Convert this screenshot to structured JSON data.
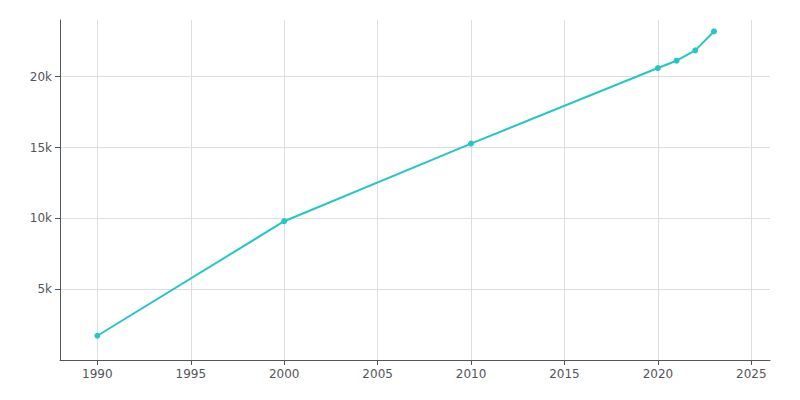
{
  "chart_data": {
    "type": "line",
    "x": [
      1990,
      2000,
      2010,
      2020,
      2021,
      2022,
      2023
    ],
    "values": [
      1713,
      9797,
      15277,
      20609,
      21126,
      21857,
      23192
    ],
    "color": "#26c6c6",
    "marker": "circle",
    "xlim": [
      1988,
      2026
    ],
    "xticks": [
      1990,
      1995,
      2000,
      2005,
      2010,
      2015,
      2020,
      2025
    ],
    "ylim": [
      0,
      24000
    ],
    "yticks": [
      {
        "value": 5000,
        "label": "5k"
      },
      {
        "value": 10000,
        "label": "10k"
      },
      {
        "value": 15000,
        "label": "15k"
      },
      {
        "value": 20000,
        "label": "20k"
      }
    ],
    "grid": true
  }
}
